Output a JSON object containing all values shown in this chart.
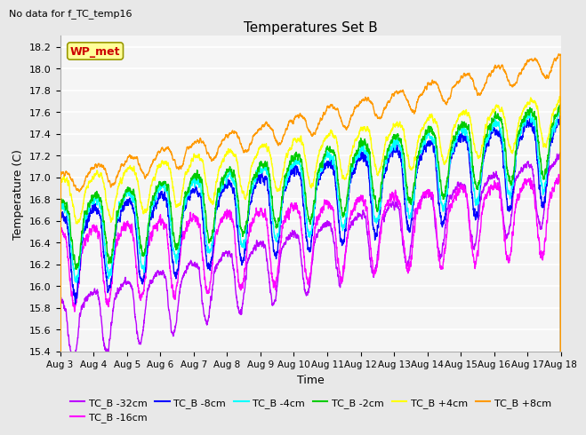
{
  "title": "Temperatures Set B",
  "subtitle": "No data for f_TC_temp16",
  "xlabel": "Time",
  "ylabel": "Temperature (C)",
  "ylim": [
    15.4,
    18.3
  ],
  "x_tick_labels": [
    "Aug 3",
    "Aug 4",
    "Aug 5",
    "Aug 6",
    "Aug 7",
    "Aug 8",
    "Aug 9",
    "Aug 10",
    "Aug 11",
    "Aug 12",
    "Aug 13",
    "Aug 14",
    "Aug 15",
    "Aug 16",
    "Aug 17",
    "Aug 18"
  ],
  "series_labels": [
    "TC_B -32cm",
    "TC_B -16cm",
    "TC_B -8cm",
    "TC_B -4cm",
    "TC_B -2cm",
    "TC_B +4cm",
    "TC_B +8cm"
  ],
  "series_colors": [
    "#bb00ff",
    "#ff00ff",
    "#0000ff",
    "#00ffff",
    "#00cc00",
    "#ffff00",
    "#ff9900"
  ],
  "wp_met_color": "#cc0000",
  "wp_met_bg": "#ffff99",
  "background_color": "#e8e8e8",
  "grid_color": "#ffffff"
}
